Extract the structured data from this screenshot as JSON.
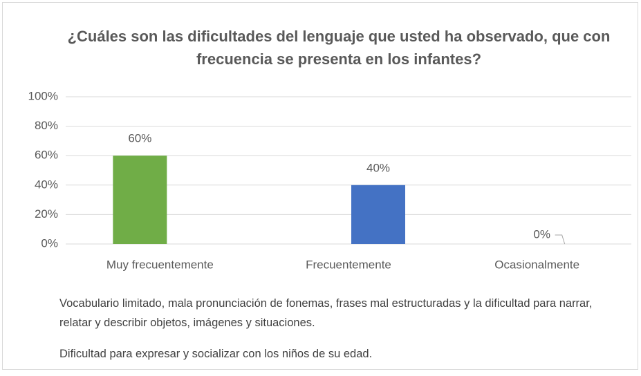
{
  "chart_data": {
    "type": "bar",
    "title": "¿Cuáles son las dificultades del lenguaje que usted ha observado, que con frecuencia se presenta en los infantes?",
    "categories": [
      "Muy frecuentemente",
      "Frecuentemente",
      "Ocasionalmente"
    ],
    "values": [
      60,
      40,
      0
    ],
    "value_labels": [
      "60%",
      "40%",
      "0%"
    ],
    "colors": [
      "#70ad47",
      "#4472c4"
    ],
    "legend": [
      {
        "name": "Vocabulario limitado, mala pronunciación de fonemas, frases mal estructuradas y la dificultad para narrar, relatar y describir objetos, imágenes y situaciones.",
        "color": "#70ad47"
      },
      {
        "name": "Dificultad para expresar y socializar con los niños de su edad.",
        "color": "#4472c4"
      }
    ],
    "ylim": [
      0,
      100
    ],
    "yticks": [
      {
        "value": 0,
        "label": "0%"
      },
      {
        "value": 20,
        "label": "20%"
      },
      {
        "value": 40,
        "label": "40%"
      },
      {
        "value": 60,
        "label": "60%"
      },
      {
        "value": 80,
        "label": "80%"
      },
      {
        "value": 100,
        "label": "100%"
      }
    ],
    "grid": true
  }
}
